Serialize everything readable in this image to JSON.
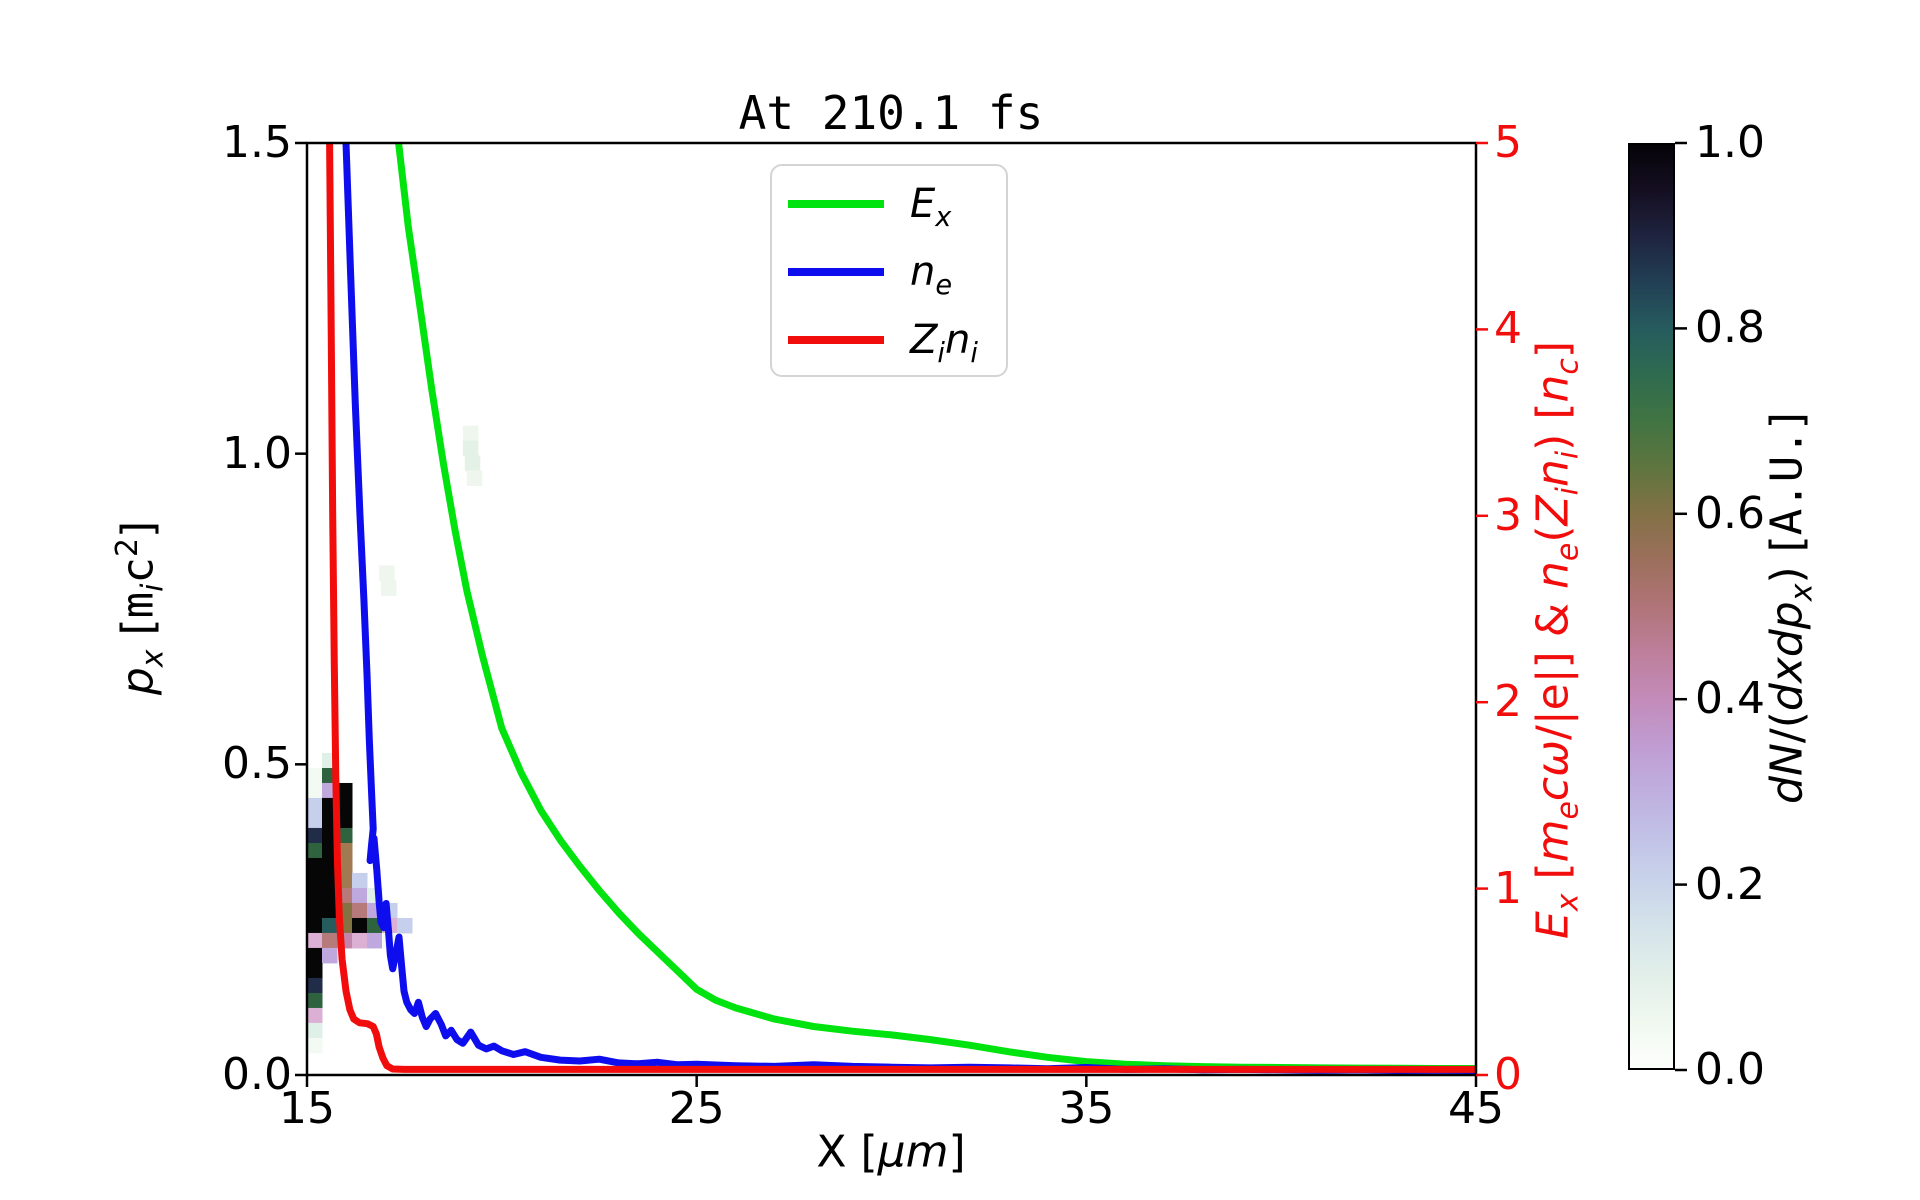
{
  "title": "At 210.1 fs",
  "axes": {
    "x": {
      "label_rich": "X [$μm$]",
      "range": [
        15,
        45
      ],
      "ticks": [
        "15",
        "25",
        "35",
        "45"
      ],
      "tick_values": [
        15,
        25,
        35,
        45
      ]
    },
    "y_left": {
      "label_rich": "$p$_$x$_ [`m`_$i$_`c`^2^]",
      "range": [
        0,
        1.5
      ],
      "ticks": [
        "0.0",
        "0.5",
        "1.0",
        "1.5"
      ],
      "tick_values": [
        0,
        0.5,
        1.0,
        1.5
      ]
    },
    "y_right": {
      "label_rich": "$E$_$x$_ [$m$_$e$_$cω$/|e|] & $n$_$e$_($Z$_$i$_$n$_$i$_) [$n$_$c$_]",
      "range": [
        0,
        5
      ],
      "ticks": [
        "0",
        "1",
        "2",
        "3",
        "4",
        "5"
      ],
      "tick_values": [
        0,
        1,
        2,
        3,
        4,
        5
      ],
      "color": "#f20d0d"
    },
    "colorbar": {
      "label_rich": "$dN$/($dxdp$_$x$_) [`A.U.`]",
      "range": [
        0,
        1
      ],
      "ticks": [
        "0.0",
        "0.2",
        "0.4",
        "0.6",
        "0.8",
        "1.0"
      ],
      "tick_values": [
        0,
        0.2,
        0.4,
        0.6,
        0.8,
        1.0
      ]
    }
  },
  "legend": [
    {
      "label_rich": "$E$_$x$_",
      "color": "#00e30e"
    },
    {
      "label_rich": "$n$_$e$_",
      "color": "#0d0dee"
    },
    {
      "label_rich": "$Z$_$i$_$n$_$i$_",
      "color": "#f20d0d"
    }
  ],
  "chart_data": {
    "type": [
      "heatmap",
      "line"
    ],
    "title": "At 210.1 fs",
    "xlabel": "X [um]",
    "ylabel_left": "p_x [m_i c^2]",
    "ylabel_right": "E_x [m_e c w/|e|] & n_e(Z_i n_i) [n_c]",
    "x_range": [
      15,
      45
    ],
    "y_left_range": [
      0,
      1.5
    ],
    "y_right_range": [
      0,
      5
    ],
    "grid": false,
    "legend_position": "upper center",
    "series": [
      {
        "name": "E_x",
        "axis": "right",
        "color": "#00e30e",
        "points": [
          [
            17.35,
            5.0
          ],
          [
            17.6,
            4.55
          ],
          [
            17.9,
            4.12
          ],
          [
            18.2,
            3.68
          ],
          [
            18.5,
            3.28
          ],
          [
            18.8,
            2.92
          ],
          [
            19.1,
            2.6
          ],
          [
            19.5,
            2.25
          ],
          [
            20.0,
            1.86
          ],
          [
            20.5,
            1.62
          ],
          [
            21.0,
            1.42
          ],
          [
            21.5,
            1.26
          ],
          [
            22.0,
            1.12
          ],
          [
            22.5,
            0.99
          ],
          [
            23.0,
            0.87
          ],
          [
            23.5,
            0.76
          ],
          [
            24.0,
            0.66
          ],
          [
            24.5,
            0.56
          ],
          [
            25.0,
            0.46
          ],
          [
            25.5,
            0.4
          ],
          [
            26.0,
            0.36
          ],
          [
            27.0,
            0.3
          ],
          [
            28.0,
            0.26
          ],
          [
            29.0,
            0.235
          ],
          [
            30.0,
            0.215
          ],
          [
            31.0,
            0.19
          ],
          [
            32.0,
            0.16
          ],
          [
            33.0,
            0.125
          ],
          [
            34.0,
            0.095
          ],
          [
            35.0,
            0.072
          ],
          [
            36.0,
            0.058
          ],
          [
            37.0,
            0.05
          ],
          [
            38.0,
            0.045
          ],
          [
            39.0,
            0.042
          ],
          [
            40.0,
            0.04
          ],
          [
            41.0,
            0.038
          ],
          [
            42.0,
            0.037
          ],
          [
            43.0,
            0.036
          ],
          [
            44.0,
            0.035
          ],
          [
            45.0,
            0.035
          ]
        ]
      },
      {
        "name": "n_e",
        "axis": "right",
        "color": "#0d0dee",
        "points": [
          [
            16.0,
            5.0
          ],
          [
            16.12,
            4.3
          ],
          [
            16.24,
            3.6
          ],
          [
            16.36,
            3.0
          ],
          [
            16.46,
            2.55
          ],
          [
            16.54,
            2.15
          ],
          [
            16.6,
            1.8
          ],
          [
            16.66,
            1.5
          ],
          [
            16.7,
            1.32
          ],
          [
            16.65,
            1.22
          ],
          [
            16.62,
            1.15
          ],
          [
            16.72,
            1.27
          ],
          [
            16.79,
            1.1
          ],
          [
            16.85,
            0.93
          ],
          [
            16.9,
            0.82
          ],
          [
            16.97,
            0.79
          ],
          [
            17.03,
            0.92
          ],
          [
            17.09,
            0.78
          ],
          [
            17.14,
            0.64
          ],
          [
            17.2,
            0.57
          ],
          [
            17.28,
            0.65
          ],
          [
            17.36,
            0.74
          ],
          [
            17.43,
            0.58
          ],
          [
            17.49,
            0.45
          ],
          [
            17.56,
            0.39
          ],
          [
            17.66,
            0.35
          ],
          [
            17.76,
            0.33
          ],
          [
            17.86,
            0.39
          ],
          [
            17.96,
            0.31
          ],
          [
            18.06,
            0.26
          ],
          [
            18.16,
            0.3
          ],
          [
            18.3,
            0.33
          ],
          [
            18.45,
            0.27
          ],
          [
            18.56,
            0.21
          ],
          [
            18.7,
            0.24
          ],
          [
            18.85,
            0.19
          ],
          [
            19.0,
            0.17
          ],
          [
            19.2,
            0.23
          ],
          [
            19.4,
            0.16
          ],
          [
            19.6,
            0.14
          ],
          [
            19.8,
            0.155
          ],
          [
            20.0,
            0.13
          ],
          [
            20.3,
            0.11
          ],
          [
            20.6,
            0.125
          ],
          [
            21.0,
            0.095
          ],
          [
            21.5,
            0.08
          ],
          [
            22.0,
            0.075
          ],
          [
            22.5,
            0.085
          ],
          [
            23.0,
            0.065
          ],
          [
            23.5,
            0.06
          ],
          [
            24.0,
            0.068
          ],
          [
            24.5,
            0.055
          ],
          [
            25.0,
            0.058
          ],
          [
            26.0,
            0.05
          ],
          [
            27.0,
            0.046
          ],
          [
            28.0,
            0.055
          ],
          [
            29.0,
            0.046
          ],
          [
            30.0,
            0.042
          ],
          [
            31.0,
            0.038
          ],
          [
            32.0,
            0.042
          ],
          [
            33.0,
            0.038
          ],
          [
            34.0,
            0.034
          ],
          [
            35.0,
            0.04
          ],
          [
            36.0,
            0.03
          ],
          [
            37.0,
            0.034
          ],
          [
            38.0,
            0.028
          ],
          [
            39.0,
            0.03
          ],
          [
            40.0,
            0.028
          ],
          [
            41.0,
            0.025
          ],
          [
            42.0,
            0.028
          ],
          [
            43.0,
            0.024
          ],
          [
            44.0,
            0.026
          ],
          [
            45.0,
            0.024
          ]
        ]
      },
      {
        "name": "Z_i n_i",
        "axis": "right",
        "color": "#f20d0d",
        "points": [
          [
            15.58,
            5.0
          ],
          [
            15.62,
            4.0
          ],
          [
            15.66,
            3.0
          ],
          [
            15.7,
            2.2
          ],
          [
            15.74,
            1.6
          ],
          [
            15.78,
            1.15
          ],
          [
            15.83,
            0.85
          ],
          [
            15.9,
            0.62
          ],
          [
            16.0,
            0.45
          ],
          [
            16.1,
            0.35
          ],
          [
            16.2,
            0.3
          ],
          [
            16.35,
            0.28
          ],
          [
            16.55,
            0.275
          ],
          [
            16.7,
            0.26
          ],
          [
            16.78,
            0.22
          ],
          [
            16.85,
            0.15
          ],
          [
            16.95,
            0.09
          ],
          [
            17.05,
            0.05
          ],
          [
            17.2,
            0.032
          ],
          [
            17.5,
            0.03
          ],
          [
            18.0,
            0.03
          ],
          [
            19.0,
            0.03
          ],
          [
            20.0,
            0.03
          ],
          [
            22.0,
            0.03
          ],
          [
            25.0,
            0.03
          ],
          [
            28.0,
            0.03
          ],
          [
            31.0,
            0.03
          ],
          [
            34.0,
            0.03
          ],
          [
            37.0,
            0.03
          ],
          [
            40.0,
            0.03
          ],
          [
            43.0,
            0.03
          ],
          [
            45.0,
            0.03
          ]
        ]
      }
    ],
    "heatmap": {
      "units": "phase-space density dN/(dx dp_x), A.U., left y-axis",
      "cell_dx": 0.385,
      "cell_dp": 0.0241,
      "palette": {
        "k": "#060606",
        "nv": "#202c48",
        "te": "#275c5e",
        "dg": "#2f6340",
        "gr": "#3f7344",
        "ol": "#857242",
        "br": "#a17a52",
        "ro": "#b57a79",
        "mv": "#c286ac",
        "pk": "#dcb0d4",
        "lv": "#bfa8dd",
        "lb": "#c6cfec",
        "lc": "#dff0e8",
        "wh": "#f3faf3",
        "sm1": "#eef6ee",
        "sm2": "#e4f1e7"
      },
      "cells": [
        [
          15.385,
          0.5183,
          "lc"
        ],
        [
          15.0,
          0.4941,
          "wh"
        ],
        [
          15.385,
          0.4941,
          "dg"
        ],
        [
          15.0,
          0.47,
          "wh"
        ],
        [
          15.385,
          0.47,
          "lv"
        ],
        [
          15.77,
          0.47,
          "k"
        ],
        [
          15.0,
          0.4459,
          "lb"
        ],
        [
          15.385,
          0.4459,
          "k"
        ],
        [
          15.77,
          0.4459,
          "k"
        ],
        [
          15.0,
          0.4217,
          "lb"
        ],
        [
          15.385,
          0.4217,
          "k"
        ],
        [
          15.77,
          0.4217,
          "k"
        ],
        [
          15.0,
          0.3976,
          "nv"
        ],
        [
          15.385,
          0.3976,
          "k"
        ],
        [
          15.77,
          0.3976,
          "dg"
        ],
        [
          15.0,
          0.3734,
          "dg"
        ],
        [
          15.385,
          0.3734,
          "k"
        ],
        [
          15.77,
          0.3734,
          "br"
        ],
        [
          15.0,
          0.3493,
          "k"
        ],
        [
          15.385,
          0.3493,
          "k"
        ],
        [
          15.77,
          0.3493,
          "br"
        ],
        [
          15.0,
          0.3252,
          "k"
        ],
        [
          15.385,
          0.3252,
          "k"
        ],
        [
          15.77,
          0.3252,
          "br"
        ],
        [
          16.155,
          0.3252,
          "lb"
        ],
        [
          15.0,
          0.301,
          "k"
        ],
        [
          15.385,
          0.301,
          "k"
        ],
        [
          15.77,
          0.301,
          "ro"
        ],
        [
          16.155,
          0.301,
          "lv"
        ],
        [
          16.54,
          0.301,
          "lc"
        ],
        [
          15.0,
          0.2769,
          "k"
        ],
        [
          15.385,
          0.2769,
          "k"
        ],
        [
          15.77,
          0.2769,
          "ol"
        ],
        [
          16.155,
          0.2769,
          "ro"
        ],
        [
          16.54,
          0.2769,
          "lv"
        ],
        [
          16.925,
          0.2769,
          "lb"
        ],
        [
          15.0,
          0.2527,
          "k"
        ],
        [
          15.385,
          0.2527,
          "te"
        ],
        [
          15.77,
          0.2527,
          "ol"
        ],
        [
          16.155,
          0.2527,
          "k"
        ],
        [
          16.54,
          0.2527,
          "dg"
        ],
        [
          16.925,
          0.2527,
          "pk"
        ],
        [
          17.31,
          0.2527,
          "lb"
        ],
        [
          15.0,
          0.2286,
          "pk"
        ],
        [
          15.385,
          0.2286,
          "ro"
        ],
        [
          15.77,
          0.2286,
          "mv"
        ],
        [
          16.155,
          0.2286,
          "pk"
        ],
        [
          16.54,
          0.2286,
          "lv"
        ],
        [
          16.925,
          0.2286,
          "wh"
        ],
        [
          15.0,
          0.2045,
          "k"
        ],
        [
          15.385,
          0.2045,
          "lv"
        ],
        [
          15.0,
          0.1803,
          "k"
        ],
        [
          15.0,
          0.1562,
          "nv"
        ],
        [
          15.0,
          0.132,
          "dg"
        ],
        [
          15.0,
          0.1079,
          "pk"
        ],
        [
          15.0,
          0.0838,
          "lc"
        ],
        [
          15.0,
          0.0596,
          "wh"
        ],
        [
          19.0,
          1.045,
          "sm1"
        ],
        [
          19.0,
          1.021,
          "sm2"
        ],
        [
          19.05,
          0.997,
          "sm2"
        ],
        [
          19.1,
          0.973,
          "sm1"
        ],
        [
          16.85,
          0.82,
          "sm1"
        ],
        [
          16.9,
          0.796,
          "sm1"
        ]
      ]
    },
    "colorbar_stops": [
      [
        0.0,
        "#fdfffc"
      ],
      [
        0.05,
        "#f0f8f0"
      ],
      [
        0.1,
        "#e2efe9"
      ],
      [
        0.15,
        "#d5e4ea"
      ],
      [
        0.2,
        "#c9d4ea"
      ],
      [
        0.25,
        "#c2c2e7"
      ],
      [
        0.3,
        "#bfafdf"
      ],
      [
        0.35,
        "#c09cd2"
      ],
      [
        0.4,
        "#c38bb9"
      ],
      [
        0.45,
        "#bd7f9b"
      ],
      [
        0.5,
        "#b07478"
      ],
      [
        0.55,
        "#9c6f5c"
      ],
      [
        0.6,
        "#837147"
      ],
      [
        0.65,
        "#5f753f"
      ],
      [
        0.7,
        "#417442"
      ],
      [
        0.75,
        "#2f6b4f"
      ],
      [
        0.8,
        "#265c5e"
      ],
      [
        0.85,
        "#224055"
      ],
      [
        0.9,
        "#1f2440"
      ],
      [
        0.95,
        "#150f22"
      ],
      [
        1.0,
        "#050308"
      ]
    ]
  }
}
